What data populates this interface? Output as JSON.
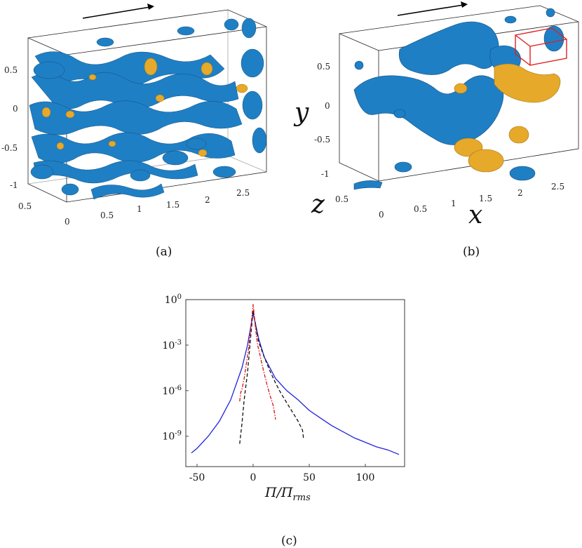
{
  "panel_a": {
    "caption": "(a)",
    "y_ticks": [
      "0.5",
      "0",
      "-0.5",
      "-1"
    ],
    "z_ticks": [
      "0.5",
      "0"
    ],
    "x_ticks": [
      "0.5",
      "1",
      "1.5",
      "2",
      "2.5"
    ],
    "colors": {
      "blue": "#1f7fc4",
      "yellow": "#e6a92a"
    }
  },
  "panel_b": {
    "caption": "(b)",
    "y_ticks": [
      "0.5",
      "0",
      "-0.5",
      "-1"
    ],
    "z_ticks": [
      "0.5",
      "0"
    ],
    "x_ticks": [
      "0.5",
      "1",
      "1.5",
      "2",
      "2.5"
    ],
    "y_label": "y",
    "z_label": "z",
    "x_label": "x",
    "highlight_color": "#e02020"
  },
  "panel_c": {
    "caption": "(c)",
    "xlabel_main": "Π/Π",
    "xlabel_sub": "rms",
    "chart_data": {
      "type": "line",
      "title": "",
      "xlabel": "Π/Π_rms",
      "ylabel": "",
      "yscale": "log",
      "xlim": [
        -60,
        135
      ],
      "ylim_exponent": [
        -11,
        0
      ],
      "x_ticks": [
        -50,
        0,
        50,
        100
      ],
      "x_tick_labels": [
        "-50",
        "0",
        "50",
        "100"
      ],
      "y_tick_exponents": [
        0,
        -3,
        -6,
        -9
      ],
      "y_tick_base": "10",
      "y_tick_exp_labels": [
        "0",
        "-3",
        "-6",
        "-9"
      ],
      "series": [
        {
          "name": "blue-solid",
          "color": "#2222dd",
          "style": "solid",
          "x": [
            -55,
            -50,
            -40,
            -30,
            -20,
            -10,
            -5,
            0,
            5,
            10,
            20,
            30,
            40,
            50,
            60,
            70,
            80,
            90,
            100,
            110,
            120,
            130
          ],
          "log10_y": [
            -10.1,
            -9.8,
            -9.0,
            -8.0,
            -6.6,
            -4.5,
            -3.0,
            -0.9,
            -2.6,
            -3.8,
            -5.2,
            -6.0,
            -6.6,
            -7.3,
            -7.8,
            -8.3,
            -8.7,
            -9.1,
            -9.4,
            -9.7,
            -9.9,
            -10.2
          ]
        },
        {
          "name": "black-dashed",
          "color": "#111111",
          "style": "dashed",
          "x": [
            -12,
            -10,
            -8,
            -5,
            -2,
            0,
            3,
            5,
            10,
            15,
            20,
            25,
            30,
            35,
            40,
            44,
            45
          ],
          "log10_y": [
            -9.5,
            -8.2,
            -6.6,
            -4.8,
            -2.3,
            -0.7,
            -2.0,
            -2.8,
            -3.8,
            -4.7,
            -5.5,
            -6.2,
            -6.8,
            -7.4,
            -8.0,
            -8.6,
            -9.2
          ]
        },
        {
          "name": "red-dashdot",
          "color": "#dd1111",
          "style": "dashdot",
          "x": [
            -12,
            -11,
            -10,
            -8,
            -6,
            -4,
            -2,
            0,
            2,
            4,
            6,
            8,
            10,
            12,
            15,
            18,
            20
          ],
          "log10_y": [
            -6.7,
            -6.1,
            -5.9,
            -5.2,
            -4.2,
            -3.2,
            -1.8,
            -0.3,
            -1.8,
            -3.0,
            -3.6,
            -4.3,
            -4.9,
            -5.5,
            -6.3,
            -7.0,
            -7.9
          ]
        }
      ]
    }
  }
}
